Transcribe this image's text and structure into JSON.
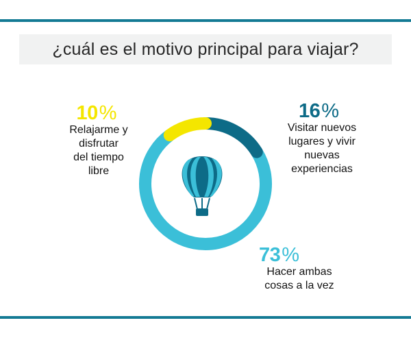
{
  "title": "¿cuál es el motivo principal para viajar?",
  "colors": {
    "rule": "#137a94",
    "title_band": "#f1f2f2",
    "relax": "#f4e600",
    "visit": "#0d6b87",
    "both": "#3bbfd8",
    "balloon_dark": "#0d6b87",
    "balloon_light": "#3bbfd8"
  },
  "center_icon": "hot-air-balloon-icon",
  "chart_data": {
    "type": "pie",
    "title": "¿cuál es el motivo principal para viajar?",
    "slices": [
      {
        "key": "relax",
        "value": 10,
        "pct_text": "10",
        "label": "Relajarme y disfrutar del tiempo libre",
        "label_lines": [
          "Relajarme y",
          "disfrutar",
          "del tiempo",
          "libre"
        ],
        "color": "#f4e600"
      },
      {
        "key": "visit",
        "value": 16,
        "pct_text": "16",
        "label": "Visitar nuevos lugares y vivir nuevas experiencias",
        "label_lines": [
          "Visitar nuevos",
          "lugares y vivir",
          "nuevas",
          "experiencias"
        ],
        "color": "#0d6b87"
      },
      {
        "key": "both",
        "value": 73,
        "pct_text": "73",
        "label": "Hacer ambas cosas a la vez",
        "label_lines": [
          "Hacer ambas",
          "cosas a la vez"
        ],
        "color": "#3bbfd8"
      }
    ],
    "percent_sign": "%"
  }
}
